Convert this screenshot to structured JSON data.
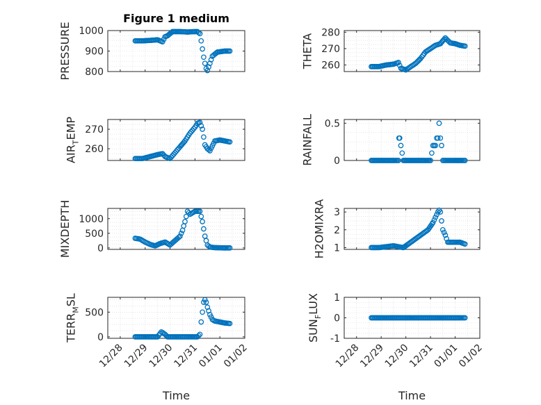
{
  "chart_data": [
    {
      "type": "scatter",
      "title": "Figure 1 medium",
      "ylabel": "PRESSURE",
      "xlabel": "",
      "ylim": [
        800,
        1000
      ],
      "yticks": [
        800,
        900,
        1000
      ],
      "yticklabels": [
        "800",
        "900",
        "1000"
      ],
      "xlim": [
        "12/28",
        "01/02"
      ],
      "xticklabels": [],
      "grid": true,
      "color": "#0072BD",
      "series": [
        {
          "x": [
            28.6,
            28.9,
            29.2,
            29.5,
            29.7,
            29.8,
            29.9,
            30.1,
            30.4,
            30.7,
            31.0,
            31.1,
            31.2,
            31.25,
            31.3,
            31.35,
            31.4,
            31.45,
            31.5,
            31.6,
            31.7,
            31.9,
            32.2,
            32.4
          ],
          "y": [
            950,
            950,
            952,
            955,
            945,
            970,
            975,
            995,
            995,
            993,
            995,
            995,
            985,
            950,
            910,
            870,
            840,
            815,
            805,
            840,
            875,
            895,
            900,
            900
          ]
        }
      ]
    },
    {
      "type": "scatter",
      "title": "",
      "ylabel": "THETA",
      "xlabel": "",
      "ylim": [
        256,
        281
      ],
      "yticks": [
        260,
        270,
        280
      ],
      "yticklabels": [
        "260",
        "270",
        "280"
      ],
      "xlim": [
        "12/28",
        "01/02"
      ],
      "xticklabels": [],
      "grid": true,
      "color": "#0072BD",
      "series": [
        {
          "x": [
            28.6,
            28.9,
            29.2,
            29.5,
            29.7,
            29.8,
            29.9,
            30.0,
            30.2,
            30.4,
            30.6,
            30.8,
            31.0,
            31.2,
            31.4,
            31.6,
            31.8,
            32.0,
            32.2,
            32.4
          ],
          "y": [
            259,
            259,
            260,
            260.5,
            261.5,
            258,
            257.5,
            257,
            259,
            261,
            264,
            268,
            270,
            272,
            273,
            276.5,
            273.5,
            273,
            272,
            271.5
          ]
        }
      ]
    },
    {
      "type": "scatter",
      "title": "",
      "ylabel": "AIR_TEMP",
      "xlabel": "",
      "ylim": [
        254,
        275
      ],
      "yticks": [
        260,
        270
      ],
      "yticklabels": [
        "260",
        "270"
      ],
      "xlim": [
        "12/28",
        "01/02"
      ],
      "xticklabels": [],
      "grid": true,
      "color": "#0072BD",
      "series": [
        {
          "x": [
            28.6,
            28.9,
            29.2,
            29.5,
            29.7,
            29.8,
            29.9,
            30.0,
            30.2,
            30.4,
            30.6,
            30.8,
            31.0,
            31.1,
            31.2,
            31.3,
            31.35,
            31.4,
            31.5,
            31.6,
            31.8,
            32.0,
            32.2,
            32.4
          ],
          "y": [
            255,
            255,
            256,
            257,
            257.5,
            256,
            255.5,
            255,
            258,
            261,
            264,
            268,
            271,
            273,
            273.5,
            270,
            266,
            262,
            260,
            259,
            264,
            264.5,
            264,
            263.5
          ]
        }
      ]
    },
    {
      "type": "scatter",
      "title": "",
      "ylabel": "RAINFALL",
      "xlabel": "",
      "ylim": [
        0,
        0.55
      ],
      "yticks": [
        0,
        0.5
      ],
      "yticklabels": [
        "0",
        "0.5"
      ],
      "xlim": [
        "12/28",
        "01/02"
      ],
      "xticklabels": [],
      "grid": true,
      "color": "#0072BD",
      "series": [
        {
          "x": [
            28.6,
            28.9,
            29.2,
            29.5,
            29.7,
            29.72,
            29.75,
            29.9,
            30.2,
            30.5,
            30.8,
            31.0,
            31.1,
            31.15,
            31.2,
            31.25,
            31.3,
            31.35,
            31.4,
            31.45,
            31.5,
            31.6,
            31.8,
            32.0,
            32.2,
            32.4
          ],
          "y": [
            0,
            0,
            0,
            0,
            0,
            0.3,
            0.3,
            0,
            0,
            0,
            0,
            0,
            0.2,
            0.2,
            0.2,
            0.3,
            0.3,
            0.5,
            0.3,
            0.2,
            0,
            0,
            0,
            0,
            0,
            0
          ]
        }
      ]
    },
    {
      "type": "scatter",
      "title": "",
      "ylabel": "MIXDEPTH",
      "xlabel": "",
      "ylim": [
        -50,
        1350
      ],
      "yticks": [
        0,
        500,
        1000
      ],
      "yticklabels": [
        "0",
        "500",
        "1000"
      ],
      "xlim": [
        "12/28",
        "01/02"
      ],
      "xticklabels": [],
      "grid": true,
      "color": "#0072BD",
      "series": [
        {
          "x": [
            28.6,
            28.8,
            29.0,
            29.2,
            29.4,
            29.6,
            29.8,
            30.0,
            30.2,
            30.4,
            30.5,
            30.6,
            30.7,
            30.8,
            31.0,
            31.2,
            31.3,
            31.4,
            31.5,
            31.6,
            31.8,
            32.0,
            32.2,
            32.4
          ],
          "y": [
            330,
            300,
            200,
            120,
            70,
            150,
            200,
            100,
            250,
            400,
            600,
            900,
            1250,
            1150,
            1250,
            1250,
            900,
            400,
            100,
            30,
            10,
            5,
            0,
            0
          ]
        }
      ]
    },
    {
      "type": "scatter",
      "title": "",
      "ylabel": "H2OMIXRA",
      "xlabel": "",
      "ylim": [
        0.9,
        3.2
      ],
      "yticks": [
        1,
        2,
        3
      ],
      "yticklabels": [
        "1",
        "2",
        "3"
      ],
      "xlim": [
        "12/28",
        "01/02"
      ],
      "xticklabels": [],
      "grid": true,
      "color": "#0072BD",
      "series": [
        {
          "x": [
            28.6,
            28.9,
            29.2,
            29.5,
            29.7,
            29.9,
            30.1,
            30.3,
            30.5,
            30.7,
            30.9,
            31.1,
            31.2,
            31.3,
            31.35,
            31.4,
            31.45,
            31.5,
            31.6,
            31.7,
            32.0,
            32.2,
            32.4
          ],
          "y": [
            1.0,
            1.0,
            1.05,
            1.1,
            1.05,
            1.0,
            1.2,
            1.4,
            1.6,
            1.8,
            2.0,
            2.4,
            2.7,
            3.0,
            3.1,
            3.0,
            2.5,
            2.0,
            1.7,
            1.3,
            1.3,
            1.3,
            1.2
          ]
        }
      ]
    },
    {
      "type": "scatter",
      "title": "",
      "ylabel": "TERR_MSL",
      "xlabel": "Time",
      "ylim": [
        -30,
        800
      ],
      "yticks": [
        0,
        500
      ],
      "yticklabels": [
        "0",
        "500"
      ],
      "xlim": [
        "12/28",
        "01/02"
      ],
      "xticklabels": [
        "12/28",
        "12/29",
        "12/30",
        "12/31",
        "01/01",
        "01/02"
      ],
      "grid": true,
      "color": "#0072BD",
      "series": [
        {
          "x": [
            28.6,
            28.9,
            29.2,
            29.5,
            29.65,
            29.8,
            29.9,
            30.2,
            30.5,
            30.8,
            31.1,
            31.2,
            31.25,
            31.3,
            31.35,
            31.4,
            31.45,
            31.5,
            31.6,
            31.7,
            31.8,
            32.0,
            32.2,
            32.4
          ],
          "y": [
            0,
            0,
            0,
            0,
            100,
            50,
            0,
            0,
            0,
            0,
            0,
            50,
            300,
            500,
            700,
            750,
            700,
            600,
            450,
            350,
            320,
            300,
            280,
            270
          ]
        }
      ]
    },
    {
      "type": "scatter",
      "title": "",
      "ylabel": "SUN_FLUX",
      "xlabel": "Time",
      "ylim": [
        -1,
        1
      ],
      "yticks": [
        -1,
        0,
        1
      ],
      "yticklabels": [
        "-1",
        "0",
        "1"
      ],
      "xlim": [
        "12/28",
        "01/02"
      ],
      "xticklabels": [
        "12/28",
        "12/29",
        "12/30",
        "12/31",
        "01/01",
        "01/02"
      ],
      "grid": true,
      "color": "#0072BD",
      "series": [
        {
          "x": [
            28.6,
            28.9,
            29.2,
            29.5,
            29.8,
            30.1,
            30.4,
            30.7,
            31.0,
            31.3,
            31.6,
            31.9,
            32.2,
            32.4
          ],
          "y": [
            0,
            0,
            0,
            0,
            0,
            0,
            0,
            0,
            0,
            0,
            0,
            0,
            0,
            0
          ]
        }
      ]
    }
  ]
}
